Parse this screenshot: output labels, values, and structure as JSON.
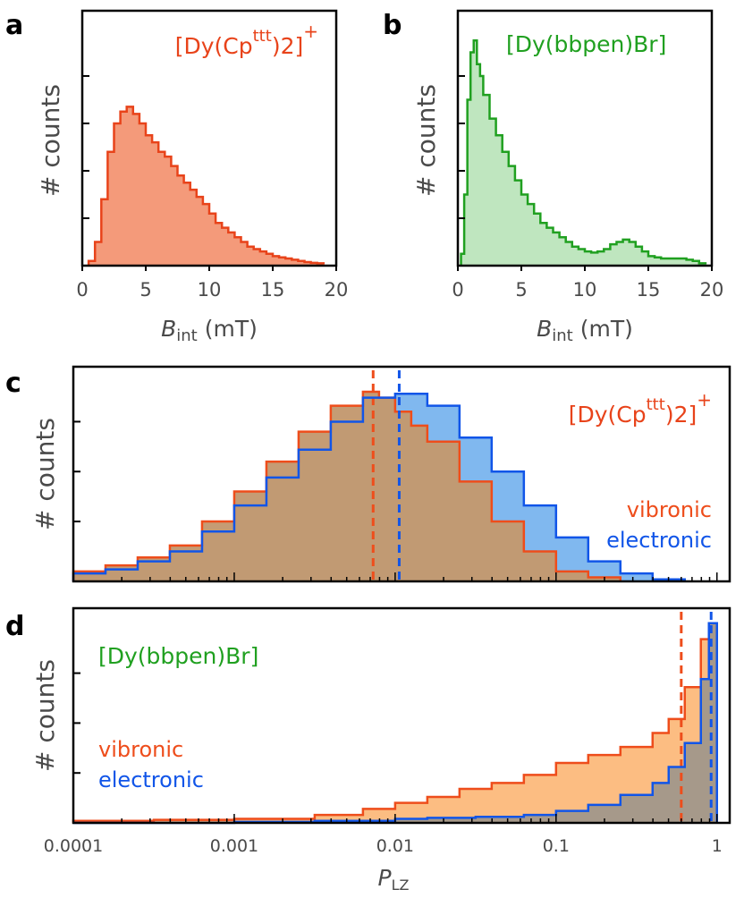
{
  "colors": {
    "cp_line": "#e8431a",
    "cp_fill": "#f49a7a",
    "bbpen_line": "#20a020",
    "bbpen_fill": "#bfe6bf",
    "vibronic_line": "#ee4d1b",
    "vibronic_fill": "#fbb26c",
    "electronic_line": "#1155e8",
    "electronic_fill": "#6aabec",
    "overlap_fill": "#b3916f"
  },
  "chart_data": [
    {
      "panel": "a",
      "type": "histogram",
      "title_main": "[Dy(Cp",
      "title_sup": "ttt",
      "title_end": ")2]",
      "title_charge": "+",
      "xlabel_main": "B",
      "xlabel_sub": "int",
      "xlabel_unit": "(mT)",
      "ylabel": "# counts",
      "xlim": [
        0,
        20
      ],
      "ylim": [
        0,
        1
      ],
      "xticks": [
        "0",
        "5",
        "10",
        "15",
        "20"
      ],
      "xtick_values": [
        0,
        5,
        10,
        15,
        20
      ],
      "ytick_values": [
        0.2,
        0.4,
        0.6,
        0.8
      ],
      "bins": [
        0.5,
        1.0,
        1.5,
        2.0,
        2.5,
        3.0,
        3.5,
        4.0,
        4.5,
        5.0,
        5.5,
        6.0,
        6.5,
        7.0,
        7.5,
        8.0,
        8.5,
        9.0,
        9.5,
        10.0,
        10.5,
        11.0,
        11.5,
        12.0,
        12.5,
        13.0,
        13.5,
        14.0,
        14.5,
        15.0,
        15.5,
        16.0,
        16.5,
        17.0,
        17.5,
        18.0,
        18.5,
        19.0
      ],
      "values": [
        0.02,
        0.1,
        0.28,
        0.48,
        0.6,
        0.65,
        0.67,
        0.64,
        0.6,
        0.55,
        0.52,
        0.48,
        0.46,
        0.42,
        0.38,
        0.35,
        0.32,
        0.29,
        0.26,
        0.22,
        0.18,
        0.16,
        0.14,
        0.12,
        0.1,
        0.08,
        0.07,
        0.06,
        0.05,
        0.04,
        0.035,
        0.03,
        0.025,
        0.02,
        0.015,
        0.012,
        0.01,
        0.005
      ]
    },
    {
      "panel": "b",
      "type": "histogram",
      "title": "[Dy(bbpen)Br]",
      "xlabel_main": "B",
      "xlabel_sub": "int",
      "xlabel_unit": "(mT)",
      "ylabel": "# counts",
      "xlim": [
        0,
        20
      ],
      "ylim": [
        0,
        1
      ],
      "xticks": [
        "0",
        "5",
        "10",
        "15",
        "20"
      ],
      "xtick_values": [
        0,
        5,
        10,
        15,
        20
      ],
      "ytick_values": [
        0.2,
        0.4,
        0.6,
        0.8
      ],
      "bins": [
        0.25,
        0.5,
        0.75,
        1.0,
        1.25,
        1.5,
        1.75,
        2.0,
        2.5,
        3.0,
        3.5,
        4.0,
        4.5,
        5.0,
        5.5,
        6.0,
        6.5,
        7.0,
        7.5,
        8.0,
        8.5,
        9.0,
        9.5,
        10.0,
        10.5,
        11.0,
        11.5,
        12.0,
        12.5,
        13.0,
        13.5,
        14.0,
        14.5,
        15.0,
        15.5,
        16.0,
        16.5,
        17.0,
        17.5,
        18.0,
        18.5,
        19.0,
        19.5
      ],
      "values": [
        0.05,
        0.3,
        0.7,
        0.9,
        0.95,
        0.85,
        0.8,
        0.72,
        0.62,
        0.55,
        0.48,
        0.42,
        0.36,
        0.3,
        0.26,
        0.22,
        0.18,
        0.16,
        0.14,
        0.12,
        0.1,
        0.08,
        0.07,
        0.06,
        0.055,
        0.06,
        0.07,
        0.09,
        0.1,
        0.11,
        0.1,
        0.08,
        0.06,
        0.04,
        0.035,
        0.03,
        0.03,
        0.03,
        0.03,
        0.025,
        0.02,
        0.01,
        0.005
      ]
    },
    {
      "panel": "c",
      "type": "histogram",
      "title_main": "[Dy(Cp",
      "title_sup": "ttt",
      "title_end": ")2]",
      "title_charge": "+",
      "ylabel": "# counts",
      "xscale": "log",
      "xlim": [
        0.0001,
        1.2
      ],
      "ylim": [
        0,
        1
      ],
      "ytick_values": [
        0.3,
        0.55,
        0.8
      ],
      "legend": [
        "vibronic",
        "electronic"
      ],
      "series": [
        {
          "name": "vibronic",
          "log10_x": [
            -4.0,
            -3.8,
            -3.6,
            -3.4,
            -3.2,
            -3.0,
            -2.8,
            -2.6,
            -2.4,
            -2.2,
            -2.1,
            -2.0,
            -1.9,
            -1.8,
            -1.6,
            -1.4,
            -1.2,
            -1.0,
            -0.8,
            -0.6
          ],
          "values": [
            0.05,
            0.08,
            0.12,
            0.18,
            0.3,
            0.45,
            0.6,
            0.75,
            0.88,
            0.95,
            0.92,
            0.85,
            0.78,
            0.7,
            0.5,
            0.3,
            0.15,
            0.05,
            0.02,
            0.0
          ],
          "median": 0.0073
        },
        {
          "name": "electronic",
          "log10_x": [
            -4.0,
            -3.8,
            -3.6,
            -3.4,
            -3.2,
            -3.0,
            -2.8,
            -2.6,
            -2.4,
            -2.2,
            -2.0,
            -1.8,
            -1.6,
            -1.4,
            -1.2,
            -1.0,
            -0.8,
            -0.6,
            -0.4,
            -0.2
          ],
          "values": [
            0.04,
            0.06,
            0.1,
            0.15,
            0.25,
            0.38,
            0.52,
            0.66,
            0.8,
            0.92,
            0.94,
            0.88,
            0.72,
            0.55,
            0.38,
            0.22,
            0.1,
            0.04,
            0.01,
            0.0
          ],
          "median": 0.0106
        }
      ]
    },
    {
      "panel": "d",
      "type": "histogram",
      "title": "[Dy(bbpen)Br]",
      "ylabel": "# counts",
      "xlabel_main": "P",
      "xlabel_sub": "LZ",
      "xscale": "log",
      "xlim": [
        0.0001,
        1.2
      ],
      "ylim": [
        0,
        1
      ],
      "xticks": [
        "0.0001",
        "0.001",
        "0.01",
        "0.1",
        "1"
      ],
      "xtick_values": [
        0.0001,
        0.001,
        0.01,
        0.1,
        1
      ],
      "ytick_values": [
        0.25,
        0.5,
        0.75
      ],
      "legend": [
        "vibronic",
        "electronic"
      ],
      "series": [
        {
          "name": "vibronic",
          "log10_x": [
            -4.0,
            -3.5,
            -3.0,
            -2.5,
            -2.2,
            -2.0,
            -1.8,
            -1.6,
            -1.4,
            -1.2,
            -1.0,
            -0.8,
            -0.6,
            -0.4,
            -0.3,
            -0.2,
            -0.1,
            -0.05,
            0.0
          ],
          "values": [
            0.01,
            0.015,
            0.02,
            0.04,
            0.07,
            0.1,
            0.13,
            0.17,
            0.2,
            0.24,
            0.3,
            0.34,
            0.38,
            0.45,
            0.52,
            0.68,
            0.92,
            1.0,
            0.0
          ],
          "median": 0.6
        },
        {
          "name": "electronic",
          "log10_x": [
            -4.0,
            -3.0,
            -2.5,
            -2.0,
            -1.8,
            -1.5,
            -1.2,
            -1.0,
            -0.8,
            -0.6,
            -0.4,
            -0.3,
            -0.2,
            -0.1,
            -0.05,
            0.0
          ],
          "values": [
            0.0,
            0.005,
            0.01,
            0.02,
            0.025,
            0.03,
            0.04,
            0.06,
            0.09,
            0.14,
            0.2,
            0.28,
            0.4,
            0.72,
            1.0,
            0.0
          ],
          "median": 0.92
        }
      ]
    }
  ]
}
